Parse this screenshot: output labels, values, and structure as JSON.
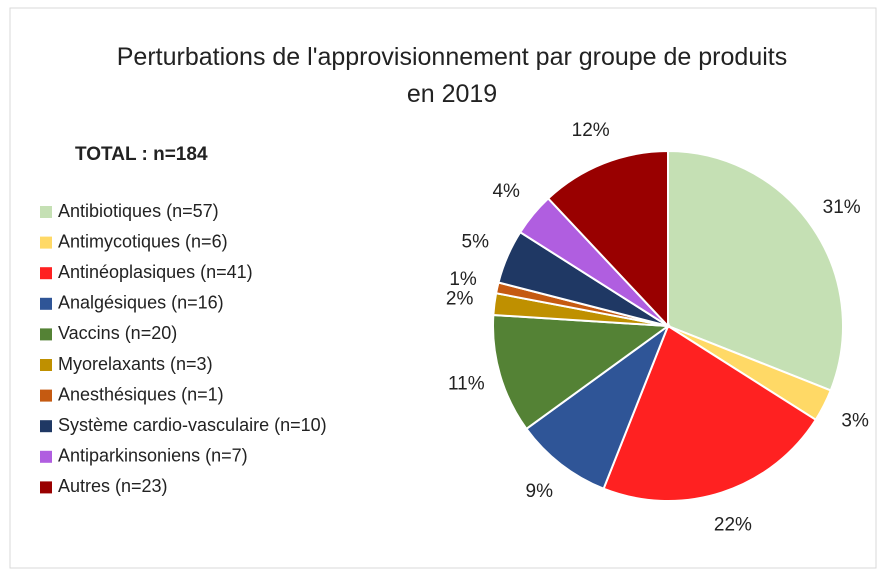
{
  "chart_data": {
    "type": "pie",
    "title": "Perturbations de l'approvisionnement par groupe de produits en 2019",
    "subtitle": "TOTAL : n=184",
    "categories": [
      "Antibiotiques (n=57)",
      "Antimycotiques (n=6)",
      "Antinéoplasiques (n=41)",
      "Analgésiques (n=16)",
      "Vaccins (n=20)",
      "Myorelaxants (n=3)",
      "Anesthésiques (n=1)",
      "Système cardio-vasculaire (n=10)",
      "Antiparkinsoniens (n=7)",
      "Autres (n=23)"
    ],
    "values": [
      31,
      3,
      22,
      9,
      11,
      2,
      1,
      5,
      4,
      12
    ],
    "value_labels": [
      "31%",
      "3%",
      "22%",
      "9%",
      "11%",
      "2%",
      "1%",
      "5%",
      "4%",
      "12%"
    ],
    "colors": [
      "#c5e0b4",
      "#ffd966",
      "#ff2121",
      "#2f5597",
      "#548235",
      "#bf9000",
      "#c55a11",
      "#1f3864",
      "#b05ee0",
      "#990000"
    ],
    "legend": "left"
  }
}
